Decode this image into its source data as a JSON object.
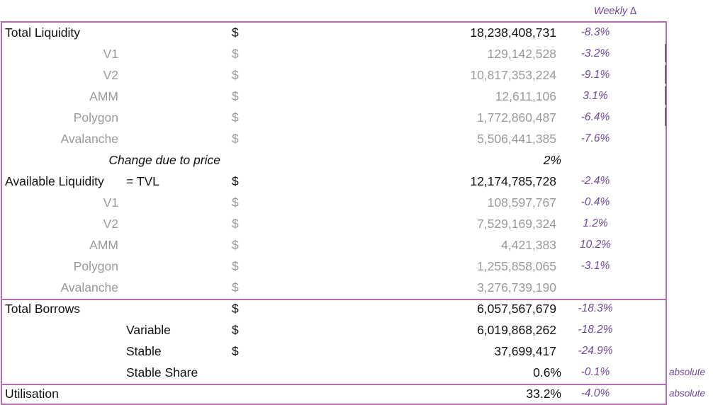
{
  "header": {
    "weekly_delta": "Weekly ∆"
  },
  "currency": "$",
  "liquidity": {
    "total": {
      "label": "Total Liquidity",
      "value": "18,238,408,731",
      "delta": "-8.3%"
    },
    "rows": [
      {
        "label": "V1",
        "value": "129,142,528",
        "delta": "-3.2%"
      },
      {
        "label": "V2",
        "value": "10,817,353,224",
        "delta": "-9.1%"
      },
      {
        "label": "AMM",
        "value": "12,611,106",
        "delta": "3.1%"
      },
      {
        "label": "Polygon",
        "value": "1,772,860,487",
        "delta": "-6.4%"
      },
      {
        "label": "Avalanche",
        "value": "5,506,441,385",
        "delta": "-7.6%"
      }
    ],
    "change_due_to_price": {
      "label": "Change due to price",
      "value": "2%"
    }
  },
  "available": {
    "total": {
      "label": "Available Liquidity",
      "note": "= TVL",
      "value": "12,174,785,728",
      "delta": "-2.4%"
    },
    "rows": [
      {
        "label": "V1",
        "value": "108,597,767",
        "delta": "-0.4%"
      },
      {
        "label": "V2",
        "value": "7,529,169,324",
        "delta": "1.2%"
      },
      {
        "label": "AMM",
        "value": "4,421,383",
        "delta": "10.2%"
      },
      {
        "label": "Polygon",
        "value": "1,255,858,065",
        "delta": "-3.1%"
      },
      {
        "label": "Avalanche",
        "value": "3,276,739,190",
        "delta": ""
      }
    ]
  },
  "borrows": {
    "total": {
      "label": "Total Borrows",
      "value": "6,057,567,679",
      "delta": "-18.3%"
    },
    "variable": {
      "label": "Variable",
      "value": "6,019,868,262",
      "delta": "-18.2%"
    },
    "stable": {
      "label": "Stable",
      "value": "37,699,417",
      "delta": "-24.9%"
    },
    "stable_share": {
      "label": "Stable Share",
      "value": "0.6%",
      "delta": "-0.1%",
      "note": "absolute"
    }
  },
  "utilisation": {
    "label": "Utilisation",
    "value": "33.2%",
    "delta": "-4.0%",
    "note": "absolute"
  }
}
